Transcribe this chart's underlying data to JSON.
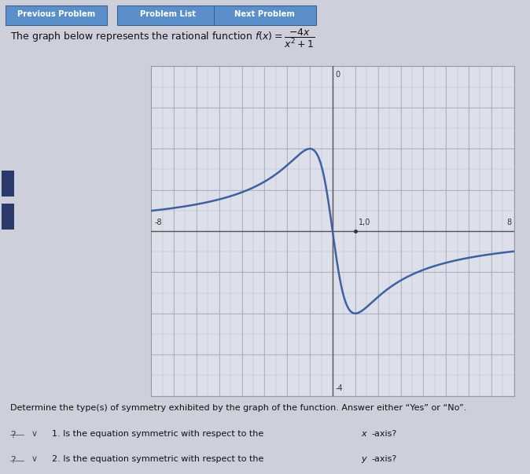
{
  "background_color": "#cdd0db",
  "plot_bg_color": "#dde0ea",
  "grid_color": "#b8bcc8",
  "curve_color": "#4060a0",
  "axis_color": "#555555",
  "xlim": [
    -8,
    8
  ],
  "ylim": [
    -4,
    4
  ],
  "btn_prev": "Previous Problem",
  "btn_list": "Problem List",
  "btn_next": "Next Problem",
  "footer_text1": "Determine the type(s) of symmetry exhibited by the graph of the function. Answer either “Yes” or “No”.",
  "footer_q1": "1. Is the equation symmetric with respect to the x -axis?",
  "footer_q2": "2. Is the equation symmetric with respect to the y -axis?",
  "curve_linewidth": 1.8,
  "axis_linewidth": 1.0,
  "btn_color": "#5b8fc9",
  "btn_text_color": "#ffffff",
  "sidebar_color": "#2a3a6a",
  "label_fontsize": 7,
  "footer_fontsize": 8
}
